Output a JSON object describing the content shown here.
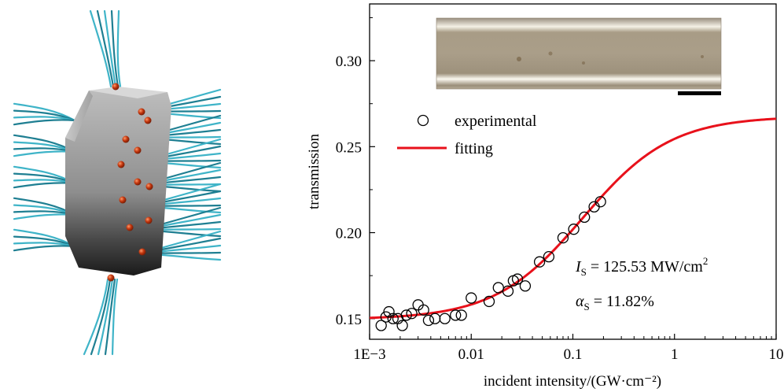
{
  "illustration": {
    "description_icon": "nanorod-with-ligands-icon"
  },
  "chart_data": {
    "type": "scatter",
    "xscale": "log",
    "xlim": [
      0.001,
      10
    ],
    "ylim": [
      0.138,
      0.333
    ],
    "xlabel": "incident intensity/(GW·cm⁻²)",
    "ylabel": "transmission",
    "xticks": [
      {
        "value": 0.001,
        "label": "1E−3"
      },
      {
        "value": 0.01,
        "label": "0.01"
      },
      {
        "value": 0.1,
        "label": "0.1"
      },
      {
        "value": 1,
        "label": "1"
      },
      {
        "value": 10,
        "label": "10"
      }
    ],
    "yticks": [
      {
        "value": 0.15,
        "label": "0.15"
      },
      {
        "value": 0.2,
        "label": "0.20"
      },
      {
        "value": 0.25,
        "label": "0.25"
      },
      {
        "value": 0.3,
        "label": "0.30"
      }
    ],
    "legend": {
      "placement": "upper-left",
      "experimental": "experimental",
      "fitting": "fitting"
    },
    "series": [
      {
        "name": "experimental",
        "marker": "open-circle",
        "x": [
          0.0013,
          0.00145,
          0.00155,
          0.0017,
          0.0019,
          0.0021,
          0.0023,
          0.0026,
          0.003,
          0.0034,
          0.0038,
          0.0044,
          0.0055,
          0.007,
          0.008,
          0.01,
          0.015,
          0.0185,
          0.023,
          0.026,
          0.0285,
          0.034,
          0.047,
          0.058,
          0.08,
          0.102,
          0.13,
          0.162,
          0.187
        ],
        "y": [
          0.146,
          0.151,
          0.154,
          0.15,
          0.15,
          0.146,
          0.152,
          0.153,
          0.158,
          0.155,
          0.149,
          0.15,
          0.15,
          0.152,
          0.152,
          0.162,
          0.16,
          0.168,
          0.166,
          0.172,
          0.173,
          0.169,
          0.183,
          0.186,
          0.197,
          0.202,
          0.209,
          0.215,
          0.218
        ]
      },
      {
        "name": "fitting",
        "type": "line",
        "color": "#e8111b",
        "model": "T = T0 + alphaS * I / (I + Is)",
        "params": {
          "T0": 0.1495,
          "alphaS": 0.1182,
          "Is_GW_per_cm2": 0.12553
        }
      }
    ],
    "annotations": {
      "is_symbol": "I",
      "is_sub": "S",
      "is_value": " = 125.53 MW/cm",
      "is_sup": "2",
      "alpha_symbol": "α",
      "alpha_sub": "S",
      "alpha_value": " = 11.82%"
    },
    "inset": {
      "description": "optical micrograph of fiber",
      "scale_bar_color": "#000000"
    },
    "colors": {
      "fit_line": "#e8111b",
      "ligand": "#3fb4c8",
      "ligand_dark": "#1f7f92",
      "particle": "#c2360e"
    }
  }
}
